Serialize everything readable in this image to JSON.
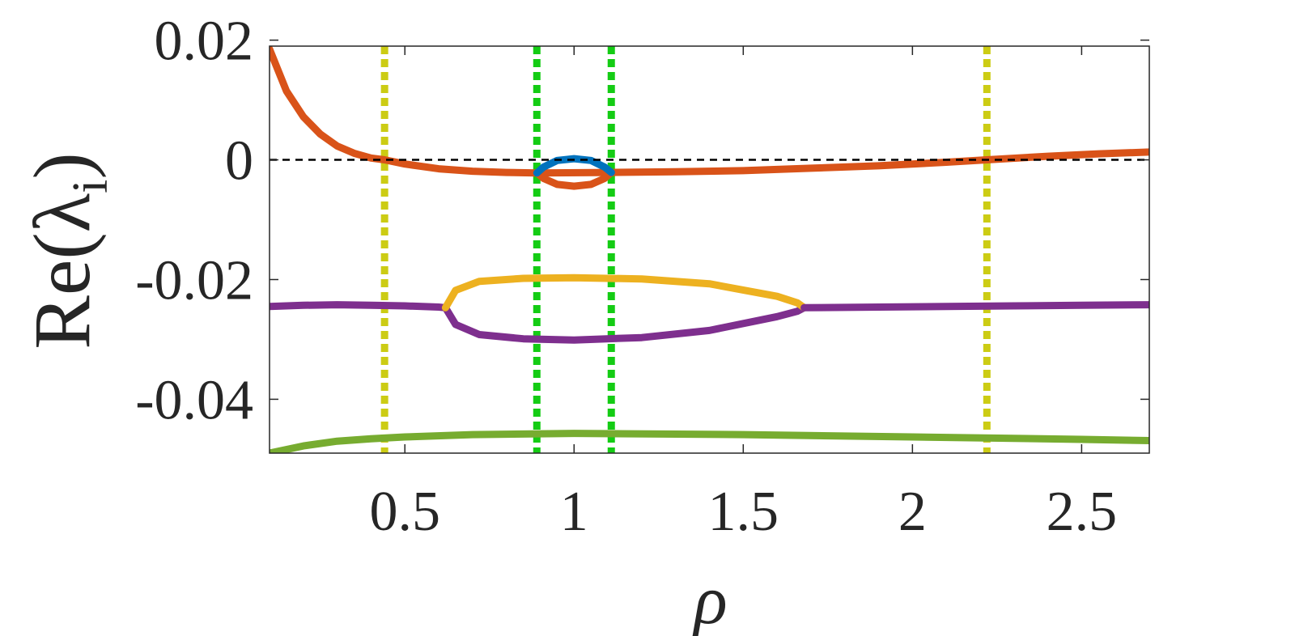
{
  "chart_data": {
    "type": "line",
    "title": "",
    "xlabel": "ρ",
    "ylabel": "Re(λ",
    "ylabel_subscript": "i",
    "ylabel_close": ")",
    "xlim": [
      0.1,
      2.7
    ],
    "ylim": [
      -0.049,
      0.019
    ],
    "x_ticks": [
      0.5,
      1,
      1.5,
      2,
      2.5
    ],
    "x_tick_labels": [
      "0.5",
      "1",
      "1.5",
      "2",
      "2.5"
    ],
    "y_ticks": [
      0.02,
      0,
      -0.02,
      -0.04
    ],
    "y_tick_labels": [
      "0.02",
      "0",
      "-0.02",
      "-0.04"
    ],
    "grid": false,
    "legend": "none",
    "reference_line": {
      "y": 0,
      "style": "dashed",
      "color": "#000000"
    },
    "vertical_lines": [
      {
        "x": 0.44,
        "color": "#cccc14",
        "style": "dotted"
      },
      {
        "x": 0.89,
        "color": "#14cc14",
        "style": "dotted"
      },
      {
        "x": 1.11,
        "color": "#14cc14",
        "style": "dotted"
      },
      {
        "x": 2.22,
        "color": "#cccc14",
        "style": "dotted"
      }
    ],
    "series": [
      {
        "color": "#d95319",
        "x": [
          0.1,
          0.15,
          0.2,
          0.25,
          0.3,
          0.35,
          0.4,
          0.44,
          0.5,
          0.6,
          0.7,
          0.8,
          0.89,
          1.11,
          1.3,
          1.5,
          1.7,
          1.9,
          2.1,
          2.22,
          2.4,
          2.55,
          2.7
        ],
        "y": [
          0.0185,
          0.0115,
          0.0072,
          0.0043,
          0.0023,
          0.0011,
          0.0003,
          0.0,
          -0.0007,
          -0.0015,
          -0.0019,
          -0.0021,
          -0.0022,
          -0.0021,
          -0.002,
          -0.0018,
          -0.0014,
          -0.001,
          -0.0004,
          0.0,
          0.0006,
          0.001,
          0.0013
        ]
      },
      {
        "color": "#d95319",
        "x": [
          0.89,
          0.91,
          0.95,
          1.0,
          1.05,
          1.09,
          1.11
        ],
        "y": [
          -0.0022,
          -0.0031,
          -0.0041,
          -0.0044,
          -0.0041,
          -0.0031,
          -0.0021
        ]
      },
      {
        "color": "#0072bd",
        "x": [
          0.89,
          0.91,
          0.95,
          1.0,
          1.05,
          1.09,
          1.11
        ],
        "y": [
          -0.0022,
          -0.0012,
          -0.0001,
          0.0002,
          -0.0001,
          -0.0012,
          -0.0021
        ]
      },
      {
        "color": "#7e2f8e",
        "x": [
          0.1,
          0.2,
          0.3,
          0.4,
          0.5,
          0.6,
          0.62
        ],
        "y": [
          -0.0245,
          -0.0243,
          -0.0242,
          -0.0243,
          -0.0244,
          -0.0246,
          -0.0247
        ]
      },
      {
        "color": "#7e2f8e",
        "x": [
          0.62,
          0.65,
          0.72,
          0.85,
          1.0,
          1.2,
          1.4,
          1.6,
          1.66,
          1.68
        ],
        "y": [
          -0.0247,
          -0.0275,
          -0.0292,
          -0.0299,
          -0.0301,
          -0.0297,
          -0.0285,
          -0.0262,
          -0.0253,
          -0.0247
        ]
      },
      {
        "color": "#edb120",
        "x": [
          0.62,
          0.65,
          0.72,
          0.85,
          1.0,
          1.2,
          1.4,
          1.6,
          1.66,
          1.68
        ],
        "y": [
          -0.0247,
          -0.0218,
          -0.0203,
          -0.0198,
          -0.0197,
          -0.0199,
          -0.0207,
          -0.0228,
          -0.0239,
          -0.0247
        ]
      },
      {
        "color": "#7e2f8e",
        "x": [
          1.68,
          1.9,
          2.1,
          2.3,
          2.5,
          2.7
        ],
        "y": [
          -0.0247,
          -0.0246,
          -0.0245,
          -0.0244,
          -0.0243,
          -0.0242
        ]
      },
      {
        "color": "#77ac30",
        "x": [
          0.1,
          0.2,
          0.3,
          0.4,
          0.5,
          0.7,
          1.0,
          1.5,
          2.0,
          2.5,
          2.7
        ],
        "y": [
          -0.049,
          -0.0478,
          -0.047,
          -0.0466,
          -0.0463,
          -0.0459,
          -0.0457,
          -0.0459,
          -0.0463,
          -0.0467,
          -0.0469
        ]
      }
    ]
  }
}
